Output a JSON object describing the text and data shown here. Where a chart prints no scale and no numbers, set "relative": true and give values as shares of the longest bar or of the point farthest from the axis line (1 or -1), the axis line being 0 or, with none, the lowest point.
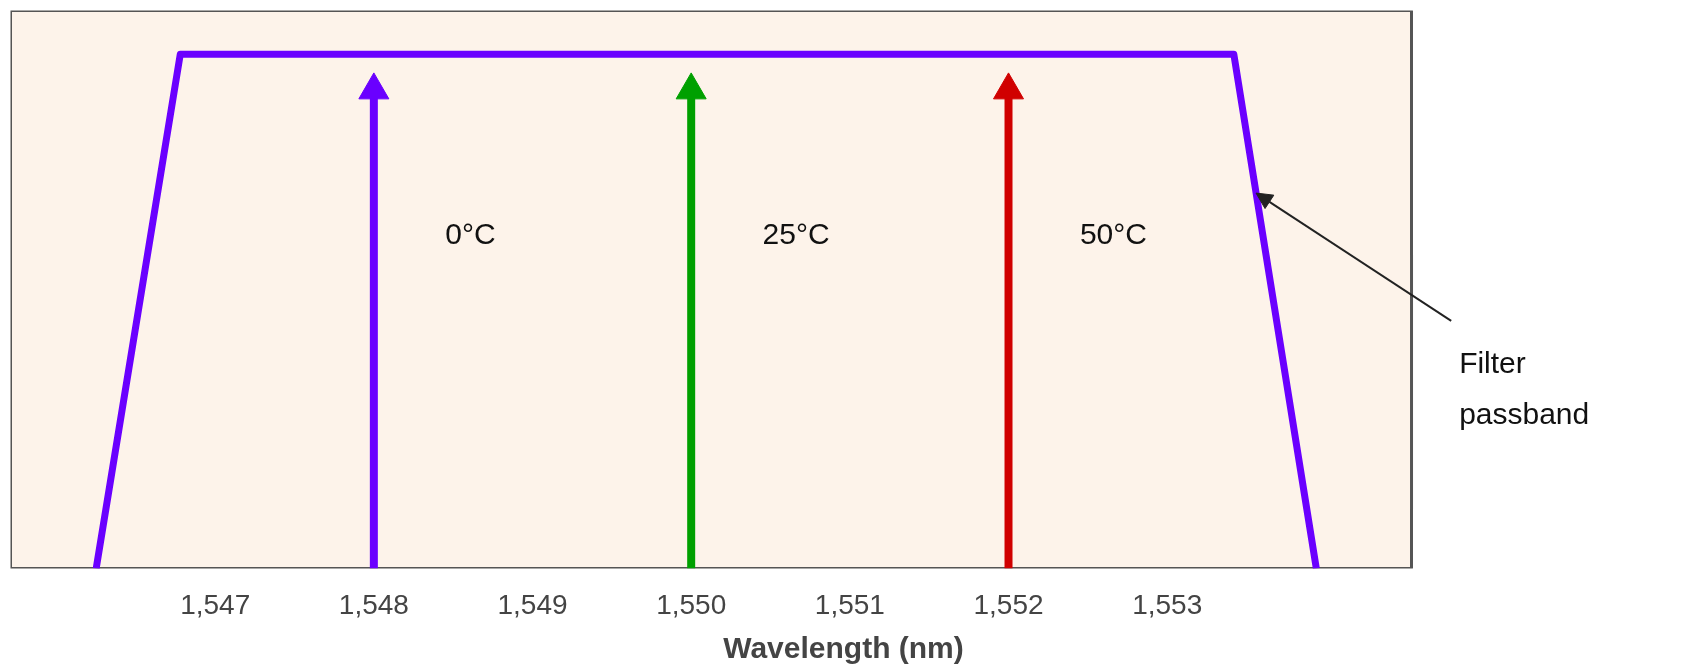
{
  "chart_data": {
    "type": "line",
    "relative": true,
    "xlabel": "Wavelength (nm)",
    "xlim": [
      1545.71,
      1554.54
    ],
    "xticks": [
      {
        "value": 1547,
        "label": "1,547"
      },
      {
        "value": 1548,
        "label": "1,548"
      },
      {
        "value": 1549,
        "label": "1,549"
      },
      {
        "value": 1550,
        "label": "1,550"
      },
      {
        "value": 1551,
        "label": "1,551"
      },
      {
        "value": 1552,
        "label": "1,552"
      },
      {
        "value": 1553,
        "label": "1,553"
      }
    ],
    "series": [
      {
        "color": "#6a00ff",
        "x": [
          1546.25,
          1546.78,
          1553.42,
          1553.94
        ],
        "values": [
          0,
          1,
          1,
          0
        ]
      },
      {
        "type": "lollipop",
        "name": "0°C",
        "color": "#6a00ff",
        "marker": "triangle",
        "x": [
          1548
        ],
        "values": [
          0.93
        ]
      },
      {
        "type": "lollipop",
        "name": "25°C",
        "color": "#00a000",
        "marker": "triangle",
        "x": [
          1550
        ],
        "values": [
          0.93
        ]
      },
      {
        "type": "lollipop",
        "name": "50°C",
        "color": "#d00000",
        "marker": "triangle",
        "x": [
          1552
        ],
        "values": [
          0.93
        ]
      }
    ],
    "annotations": [
      {
        "text": "Filter passband",
        "x": 1553.56,
        "y": 0.73
      }
    ],
    "grid": false
  }
}
